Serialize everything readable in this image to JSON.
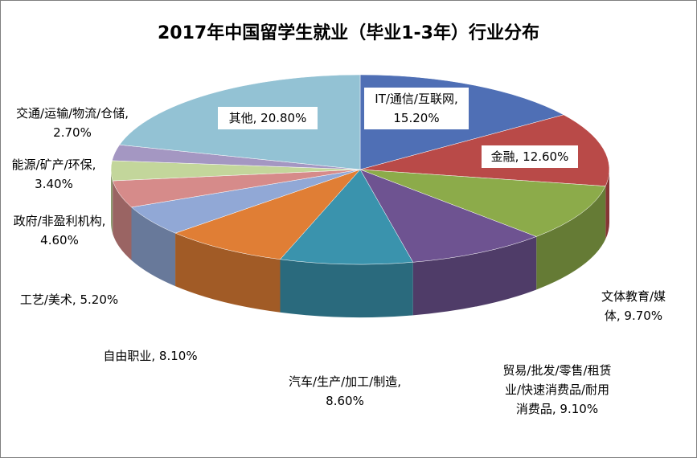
{
  "chart_data": {
    "type": "pie",
    "title": "2017年中国留学生就业（毕业1-3年）行业分布",
    "slices": [
      {
        "label": "IT/通信/互联网",
        "value": 15.2,
        "value_text": "15.20%",
        "color": "#4f6fb5"
      },
      {
        "label": "金融",
        "value": 12.6,
        "value_text": "12.60%",
        "color": "#b94a48"
      },
      {
        "label": "文体教育/媒体",
        "value": 9.7,
        "value_text": "9.70%",
        "color": "#8cab4a"
      },
      {
        "label": "贸易/批发/零售/租赁业/快速消费品/耐用消费品",
        "value": 9.1,
        "value_text": "9.10%",
        "color": "#6e5391"
      },
      {
        "label": "汽车/生产/加工/制造",
        "value": 8.6,
        "value_text": "8.60%",
        "color": "#3a93ad"
      },
      {
        "label": "自由职业",
        "value": 8.1,
        "value_text": "8.10%",
        "color": "#e07e35"
      },
      {
        "label": "工艺/美术",
        "value": 5.2,
        "value_text": "5.20%",
        "color": "#91a8d6"
      },
      {
        "label": "政府/非盈利机构",
        "value": 4.6,
        "value_text": "4.60%",
        "color": "#d68b8a"
      },
      {
        "label": "能源/矿产/环保",
        "value": 3.4,
        "value_text": "3.40%",
        "color": "#c3d69b"
      },
      {
        "label": "交通/运输/物流/仓储",
        "value": 2.7,
        "value_text": "2.70%",
        "color": "#a497c2"
      },
      {
        "label": "其他",
        "value": 20.8,
        "value_text": "20.80%",
        "color": "#93c2d4"
      }
    ],
    "labels": [
      {
        "line1": "IT/通信/互联网,",
        "line2": "15.20%"
      },
      {
        "line1": "金融, 12.60%",
        "line2": ""
      },
      {
        "line1": "文体教育/媒",
        "line2": "体, 9.70%"
      },
      {
        "line1": "贸易/批发/零售/租赁",
        "line2": "业/快速消费品/耐用",
        "line3": "消费品, 9.10%"
      },
      {
        "line1": "汽车/生产/加工/制造,",
        "line2": "8.60%"
      },
      {
        "line1": "自由职业, 8.10%",
        "line2": ""
      },
      {
        "line1": "工艺/美术, 5.20%",
        "line2": ""
      },
      {
        "line1": "政府/非盈利机构,",
        "line2": "4.60%"
      },
      {
        "line1": "能源/矿产/环保,",
        "line2": "3.40%"
      },
      {
        "line1": "交通/运输/物流/仓储,",
        "line2": "2.70%"
      },
      {
        "line1": "其他, 20.80%",
        "line2": ""
      }
    ],
    "legend": "none",
    "style": "3d-pie"
  }
}
